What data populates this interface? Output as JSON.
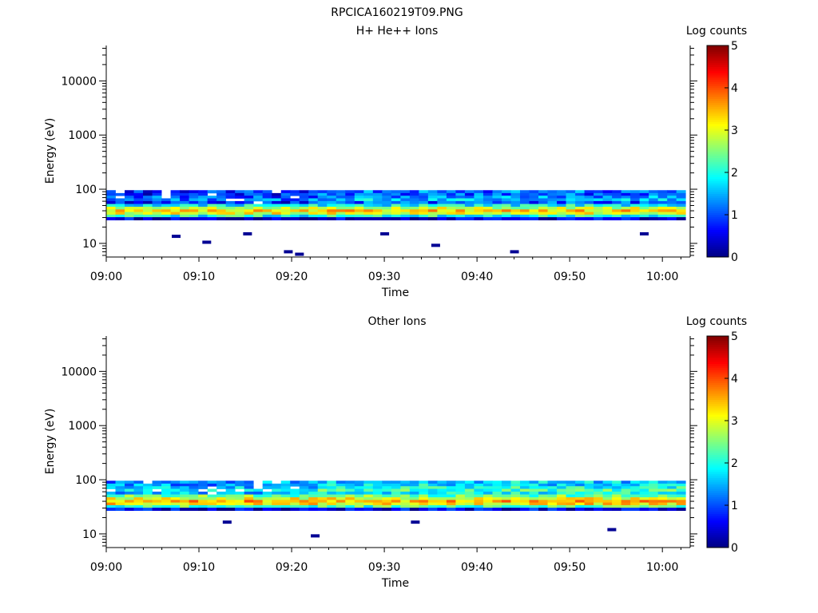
{
  "figure": {
    "title": "RPCICA160219T09.PNG"
  },
  "chart_data": [
    {
      "type": "heatmap",
      "title": "H+ He++ Ions",
      "xlabel": "Time",
      "ylabel": "Energy (eV)",
      "colorbar_label": "Log counts",
      "colorbar_ticks": [
        "0",
        "1",
        "2",
        "3",
        "4",
        "5"
      ],
      "colorbar_range": [
        0,
        5
      ],
      "colormap": "jet",
      "x_ticks": [
        "09:00",
        "09:10",
        "09:20",
        "09:30",
        "09:40",
        "09:50",
        "10:00"
      ],
      "x_range_minutes": [
        0,
        63
      ],
      "y_ticks": [
        "10",
        "100",
        "1000",
        "10000"
      ],
      "y_scale": "log",
      "y_range": [
        5.6,
        45000
      ],
      "data_x_range_minutes": [
        0,
        62.5
      ],
      "energy_band_eV": [
        27,
        96
      ],
      "energy_levels": [
        {
          "energy_eV": 90,
          "log_counts": 0.8
        },
        {
          "energy_eV": 80,
          "log_counts": 0.7
        },
        {
          "energy_eV": 72,
          "log_counts": 1.0
        },
        {
          "energy_eV": 64,
          "log_counts": 1.2
        },
        {
          "energy_eV": 57,
          "log_counts": 0.7
        },
        {
          "energy_eV": 50,
          "log_counts": 1.9
        },
        {
          "energy_eV": 45,
          "log_counts": 2.8
        },
        {
          "energy_eV": 40,
          "log_counts": 3.3
        },
        {
          "energy_eV": 36,
          "log_counts": 3.0
        },
        {
          "energy_eV": 32,
          "log_counts": 2.0
        },
        {
          "energy_eV": 29,
          "log_counts": 0.4
        }
      ],
      "isolated_points": [
        {
          "t": 7.5,
          "energy_eV": 13.5,
          "log_counts": 0.1
        },
        {
          "t": 10.8,
          "energy_eV": 10.5,
          "log_counts": 0.1
        },
        {
          "t": 15.2,
          "energy_eV": 15.0,
          "log_counts": 0.1
        },
        {
          "t": 19.6,
          "energy_eV": 7.0,
          "log_counts": 0.1
        },
        {
          "t": 20.8,
          "energy_eV": 6.3,
          "log_counts": 0.1
        },
        {
          "t": 30.0,
          "energy_eV": 15.0,
          "log_counts": 0.1
        },
        {
          "t": 35.5,
          "energy_eV": 9.2,
          "log_counts": 0.1
        },
        {
          "t": 44.0,
          "energy_eV": 7.0,
          "log_counts": 0.1
        },
        {
          "t": 58.0,
          "energy_eV": 15.0,
          "log_counts": 0.1
        }
      ]
    },
    {
      "type": "heatmap",
      "title": "Other Ions",
      "xlabel": "Time",
      "ylabel": "Energy (eV)",
      "colorbar_label": "Log counts",
      "colorbar_ticks": [
        "0",
        "1",
        "2",
        "3",
        "4",
        "5"
      ],
      "colorbar_range": [
        0,
        5
      ],
      "colormap": "jet",
      "x_ticks": [
        "09:00",
        "09:10",
        "09:20",
        "09:30",
        "09:40",
        "09:50",
        "10:00"
      ],
      "x_range_minutes": [
        0,
        63
      ],
      "y_ticks": [
        "10",
        "100",
        "1000",
        "10000"
      ],
      "y_scale": "log",
      "y_range": [
        5.6,
        45000
      ],
      "data_x_range_minutes": [
        0,
        62.5
      ],
      "energy_band_eV": [
        27,
        96
      ],
      "energy_levels": [
        {
          "energy_eV": 90,
          "log_counts": 1.3
        },
        {
          "energy_eV": 80,
          "log_counts": 1.4
        },
        {
          "energy_eV": 72,
          "log_counts": 1.6
        },
        {
          "energy_eV": 64,
          "log_counts": 1.8
        },
        {
          "energy_eV": 57,
          "log_counts": 1.5
        },
        {
          "energy_eV": 50,
          "log_counts": 2.4
        },
        {
          "energy_eV": 45,
          "log_counts": 3.0
        },
        {
          "energy_eV": 40,
          "log_counts": 3.5
        },
        {
          "energy_eV": 36,
          "log_counts": 3.2
        },
        {
          "energy_eV": 32,
          "log_counts": 2.2
        },
        {
          "energy_eV": 29,
          "log_counts": 0.5
        }
      ],
      "isolated_points": [
        {
          "t": 13.0,
          "energy_eV": 16.5,
          "log_counts": 0.1
        },
        {
          "t": 22.5,
          "energy_eV": 9.2,
          "log_counts": 0.1
        },
        {
          "t": 33.3,
          "energy_eV": 16.5,
          "log_counts": 0.1
        },
        {
          "t": 54.5,
          "energy_eV": 12.0,
          "log_counts": 0.1
        }
      ]
    }
  ]
}
